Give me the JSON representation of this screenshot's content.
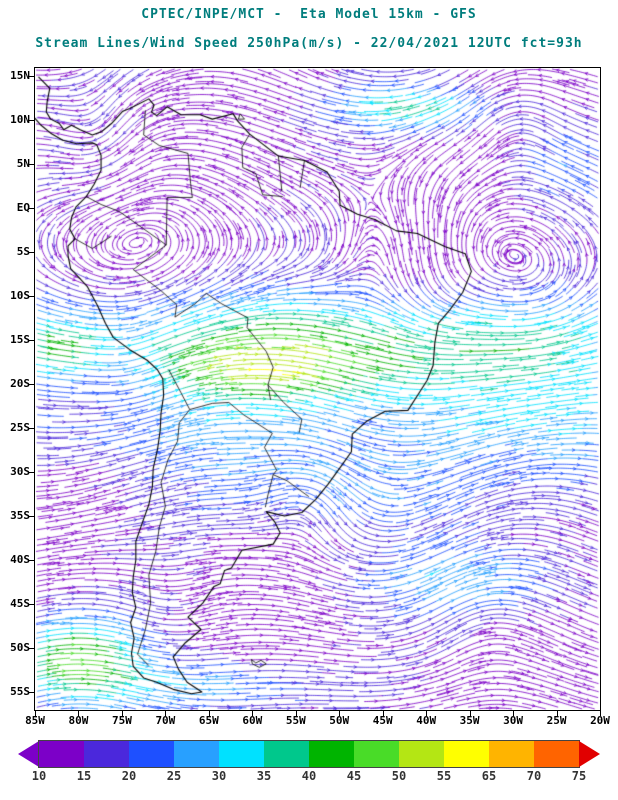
{
  "header": {
    "line1": "CPTEC/INPE/MCT -  Eta Model 15km - GFS",
    "line2": "Stream Lines/Wind Speed 250hPa(m/s) - 22/04/2021 12UTC fct=93h"
  },
  "map": {
    "lat_labels": [
      "15N",
      "10N",
      "5N",
      "EQ",
      "5S",
      "10S",
      "15S",
      "20S",
      "25S",
      "30S",
      "35S",
      "40S",
      "45S",
      "50S",
      "55S"
    ],
    "lon_labels": [
      "85W",
      "80W",
      "75W",
      "70W",
      "65W",
      "60W",
      "55W",
      "50W",
      "45W",
      "40W",
      "35W",
      "30W",
      "25W",
      "20W"
    ]
  },
  "colorbar": {
    "unit": "m/s",
    "tick_values": [
      10,
      15,
      20,
      25,
      30,
      35,
      40,
      45,
      50,
      55,
      65,
      70,
      75
    ],
    "segment_colors": [
      "#7c00c8",
      "#4b28dc",
      "#1e50ff",
      "#28a0ff",
      "#00e1ff",
      "#00c88c",
      "#00b400",
      "#49dc28",
      "#b4e614",
      "#ffff00",
      "#ffb400",
      "#ff6400"
    ],
    "left_arrow_color": "#7c00c8",
    "right_arrow_color": "#e10000"
  },
  "theme": {
    "title_color": "#007d7d",
    "axis_label_color": "#000000",
    "frame_color": "#000000",
    "background": "#ffffff"
  }
}
